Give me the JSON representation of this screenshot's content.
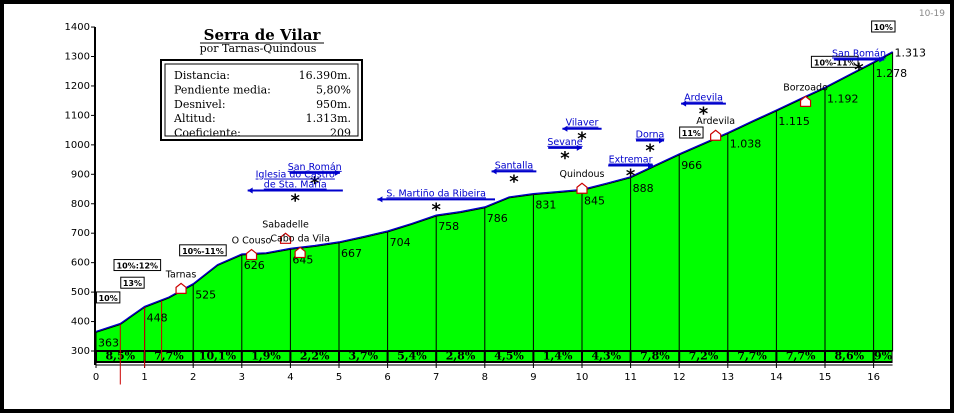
{
  "title": "Serra de Vilar",
  "subtitle": "por Tarnas-Quindous",
  "code": "10-19",
  "stats": [
    {
      "label": "Distancia:",
      "value": "16.390m."
    },
    {
      "label": "Pendiente media:",
      "value": "5,80%"
    },
    {
      "label": "Desnivel:",
      "value": "950m."
    },
    {
      "label": "Altitud:",
      "value": "1.313m."
    },
    {
      "label": "Coeficiente:",
      "value": "209"
    }
  ],
  "colors": {
    "fill": "#00ff00",
    "steep": "#cc0000",
    "road": "#0000cc",
    "band": "#000000"
  },
  "chart_data": {
    "type": "area",
    "title": "Serra de Vilar",
    "subtitle": "por Tarnas-Quindous",
    "xlabel": "",
    "ylabel": "",
    "xlim": [
      0,
      16.4
    ],
    "ylim": [
      300,
      1400
    ],
    "x_ticks": [
      "0",
      "1",
      "2",
      "3",
      "4",
      "5",
      "6",
      "7",
      "8",
      "9",
      "10",
      "11",
      "12",
      "13",
      "14",
      "15",
      "16"
    ],
    "y_ticks": [
      "300",
      "400",
      "500",
      "600",
      "700",
      "800",
      "900",
      "1000",
      "1100",
      "1200",
      "1300",
      "1400"
    ],
    "profile": [
      {
        "x": 0,
        "y": 363
      },
      {
        "x": 0.5,
        "y": 390
      },
      {
        "x": 1.0,
        "y": 448
      },
      {
        "x": 1.5,
        "y": 480
      },
      {
        "x": 2.0,
        "y": 525
      },
      {
        "x": 2.5,
        "y": 590
      },
      {
        "x": 3.0,
        "y": 626
      },
      {
        "x": 3.5,
        "y": 630
      },
      {
        "x": 4.0,
        "y": 645
      },
      {
        "x": 4.5,
        "y": 655
      },
      {
        "x": 5.0,
        "y": 667
      },
      {
        "x": 5.5,
        "y": 685
      },
      {
        "x": 6.0,
        "y": 704
      },
      {
        "x": 6.5,
        "y": 730
      },
      {
        "x": 7.0,
        "y": 758
      },
      {
        "x": 7.5,
        "y": 770
      },
      {
        "x": 8.0,
        "y": 786
      },
      {
        "x": 8.5,
        "y": 820
      },
      {
        "x": 9.0,
        "y": 831
      },
      {
        "x": 9.5,
        "y": 838
      },
      {
        "x": 10.0,
        "y": 845
      },
      {
        "x": 10.5,
        "y": 866
      },
      {
        "x": 11.0,
        "y": 888
      },
      {
        "x": 11.5,
        "y": 927
      },
      {
        "x": 12.0,
        "y": 966
      },
      {
        "x": 12.5,
        "y": 1002
      },
      {
        "x": 13.0,
        "y": 1038
      },
      {
        "x": 13.5,
        "y": 1077
      },
      {
        "x": 14.0,
        "y": 1115
      },
      {
        "x": 14.5,
        "y": 1154
      },
      {
        "x": 15.0,
        "y": 1192
      },
      {
        "x": 15.5,
        "y": 1235
      },
      {
        "x": 16.0,
        "y": 1278
      },
      {
        "x": 16.39,
        "y": 1313
      }
    ],
    "altitude_labels": [
      {
        "x": 0,
        "text": "363"
      },
      {
        "x": 1,
        "text": "448"
      },
      {
        "x": 2,
        "text": "525"
      },
      {
        "x": 3,
        "text": "626"
      },
      {
        "x": 4,
        "text": "645"
      },
      {
        "x": 5,
        "text": "667"
      },
      {
        "x": 6,
        "text": "704"
      },
      {
        "x": 7,
        "text": "758"
      },
      {
        "x": 8,
        "text": "786"
      },
      {
        "x": 9,
        "text": "831"
      },
      {
        "x": 10,
        "text": "845"
      },
      {
        "x": 11,
        "text": "888"
      },
      {
        "x": 12,
        "text": "966"
      },
      {
        "x": 13,
        "text": "1.038"
      },
      {
        "x": 14,
        "text": "1.115"
      },
      {
        "x": 15,
        "text": "1.192"
      },
      {
        "x": 16,
        "text": "1.278"
      },
      {
        "x": 16.39,
        "text": "1.313"
      }
    ],
    "segment_grades": [
      "8,5%",
      "7,7%",
      "10,1%",
      "1,9%",
      "2,2%",
      "3,7%",
      "5,4%",
      "2,8%",
      "4,5%",
      "1,4%",
      "4,3%",
      "7,8%",
      "7,2%",
      "7,7%",
      "7,7%",
      "8,6%",
      "9%"
    ],
    "steep_labels": [
      {
        "x": 0.25,
        "y": 470,
        "text": "10%"
      },
      {
        "x": 0.75,
        "y": 520,
        "text": "13%"
      },
      {
        "x": 0.85,
        "y": 580,
        "text": "10%:12%"
      },
      {
        "x": 2.2,
        "y": 630,
        "text": "10%-11%"
      },
      {
        "x": 12.25,
        "y": 1030,
        "text": "11%"
      },
      {
        "x": 15.2,
        "y": 1270,
        "text": "10%-11%"
      },
      {
        "x": 16.2,
        "y": 1390,
        "text": "10%"
      }
    ],
    "places": [
      {
        "x": 1.75,
        "y": 550,
        "text": "Tarnas",
        "house": true
      },
      {
        "x": 3.2,
        "y": 665,
        "text": "O Couso",
        "house": true
      },
      {
        "x": 3.9,
        "y": 720,
        "text": "Sabadelle",
        "house": true
      },
      {
        "x": 4.2,
        "y": 672,
        "text": "Cabo da Vila",
        "house": true
      },
      {
        "x": 10.0,
        "y": 890,
        "text": "Quindous",
        "house": true
      },
      {
        "x": 12.75,
        "y": 1070,
        "text": "Ardevila",
        "house": true
      },
      {
        "x": 14.6,
        "y": 1185,
        "text": "Borzoado",
        "house": true
      }
    ],
    "junctions": [
      {
        "x": 4.5,
        "y": 915,
        "text": "San Román",
        "dir": "right",
        "star": true
      },
      {
        "x": 4.1,
        "y": 855,
        "text": "Iglesia do Castro\nde Sta. María",
        "dir": "left",
        "star": true
      },
      {
        "x": 7.0,
        "y": 825,
        "text": "S. Martiño da Ribeira",
        "dir": "left",
        "star": true
      },
      {
        "x": 8.6,
        "y": 920,
        "text": "Santalla",
        "dir": "left",
        "star": true
      },
      {
        "x": 10.0,
        "y": 1065,
        "text": "Vilaver",
        "dir": "left",
        "star": true
      },
      {
        "x": 9.65,
        "y": 1000,
        "text": "Sevane",
        "dir": "right",
        "star": true
      },
      {
        "x": 11.0,
        "y": 940,
        "text": "Extremar",
        "dir": "right",
        "star": true
      },
      {
        "x": 11.4,
        "y": 1025,
        "text": "Dorna",
        "dir": "right",
        "star": true
      },
      {
        "x": 12.5,
        "y": 1150,
        "text": "Ardevila",
        "dir": "left",
        "star": true
      },
      {
        "x": 15.7,
        "y": 1300,
        "text": "San Román",
        "dir": "right",
        "star": true
      }
    ]
  }
}
